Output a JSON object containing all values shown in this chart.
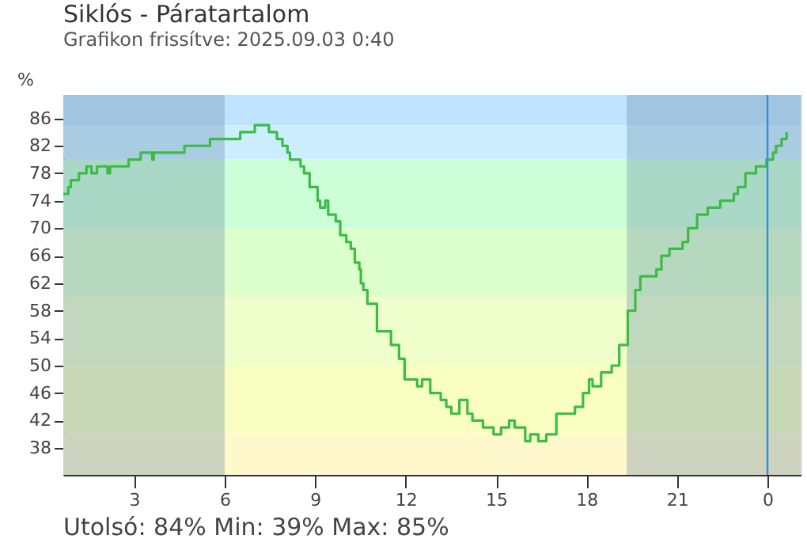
{
  "chart_data": {
    "type": "step",
    "title": "Siklós - Páratartalom",
    "subtitle": "Grafikon frissítve: 2025.09.03 0:40",
    "ylabel": "%",
    "x": [
      "2025-09-02T00:39",
      "2025-09-02T00:49",
      "2025-09-02T00:54",
      "2025-09-02T01:10",
      "2025-09-02T01:25",
      "2025-09-02T01:35",
      "2025-09-02T01:46",
      "2025-09-02T02:07",
      "2025-09-02T02:12",
      "2025-09-02T02:49",
      "2025-09-02T03:13",
      "2025-09-02T03:36",
      "2025-09-02T03:39",
      "2025-09-02T04:40",
      "2025-09-02T05:31",
      "2025-09-02T06:31",
      "2025-09-02T07:00",
      "2025-09-02T07:28",
      "2025-09-02T07:44",
      "2025-09-02T07:55",
      "2025-09-02T08:05",
      "2025-09-02T08:10",
      "2025-09-02T08:31",
      "2025-09-02T08:38",
      "2025-09-02T08:49",
      "2025-09-02T09:05",
      "2025-09-02T09:10",
      "2025-09-02T09:20",
      "2025-09-02T09:26",
      "2025-09-02T09:41",
      "2025-09-02T09:50",
      "2025-09-02T10:02",
      "2025-09-02T10:11",
      "2025-09-02T10:19",
      "2025-09-02T10:28",
      "2025-09-02T10:31",
      "2025-09-02T10:36",
      "2025-09-02T10:44",
      "2025-09-02T11:03",
      "2025-09-02T11:20",
      "2025-09-02T11:31",
      "2025-09-02T11:47",
      "2025-09-02T11:58",
      "2025-09-02T12:13",
      "2025-09-02T12:23",
      "2025-09-02T12:33",
      "2025-09-02T12:49",
      "2025-09-02T13:10",
      "2025-09-02T13:21",
      "2025-09-02T13:31",
      "2025-09-02T13:47",
      "2025-09-02T14:03",
      "2025-09-02T14:13",
      "2025-09-02T14:34",
      "2025-09-02T14:55",
      "2025-09-02T15:10",
      "2025-09-02T15:26",
      "2025-09-02T15:37",
      "2025-09-02T15:45",
      "2025-09-02T15:58",
      "2025-09-02T16:08",
      "2025-09-02T16:24",
      "2025-09-02T16:40",
      "2025-09-02T17:00",
      "2025-09-02T17:21",
      "2025-09-02T17:37",
      "2025-09-02T17:53",
      "2025-09-02T18:05",
      "2025-09-02T18:12",
      "2025-09-02T18:29",
      "2025-09-02T18:50",
      "2025-09-02T19:05",
      "2025-09-02T19:22",
      "2025-09-02T19:37",
      "2025-09-02T19:47",
      "2025-09-02T20:19",
      "2025-09-02T20:29",
      "2025-09-02T20:45",
      "2025-09-02T21:11",
      "2025-09-02T21:22",
      "2025-09-02T21:40",
      "2025-09-02T22:01",
      "2025-09-02T22:26",
      "2025-09-02T22:53",
      "2025-09-02T23:01",
      "2025-09-02T23:16",
      "2025-09-02T23:37",
      "2025-09-02T23:58",
      "2025-09-03T00:11",
      "2025-09-03T00:17",
      "2025-09-03T00:28",
      "2025-09-03T00:38"
    ],
    "series": [
      {
        "color": "#3cbc44",
        "values": [
          75,
          76,
          77,
          78,
          79,
          78,
          79,
          78,
          79,
          80,
          81,
          80,
          81,
          82,
          83,
          84,
          85,
          84,
          83,
          82,
          81,
          80,
          79,
          78,
          76,
          74,
          73,
          74,
          72,
          71,
          69,
          68,
          67,
          65,
          64,
          62,
          61,
          59,
          55,
          55,
          53,
          51,
          48,
          48,
          47,
          48,
          46,
          45,
          44,
          43,
          45,
          43,
          42,
          41,
          40,
          41,
          42,
          41,
          41,
          39,
          40,
          39,
          40,
          43,
          43,
          44,
          46,
          48,
          47,
          49,
          50,
          53,
          58,
          61,
          63,
          64,
          66,
          67,
          68,
          70,
          72,
          73,
          74,
          75,
          76,
          78,
          79,
          80,
          81,
          82,
          83,
          84
        ]
      }
    ],
    "xlim": [
      "2025-09-02T00:39",
      "2025-09-03T01:06"
    ],
    "xticks": [
      {
        "value": "2025-09-02T03:00",
        "label": "3"
      },
      {
        "value": "2025-09-02T06:00",
        "label": "6"
      },
      {
        "value": "2025-09-02T09:00",
        "label": "9"
      },
      {
        "value": "2025-09-02T12:00",
        "label": "12"
      },
      {
        "value": "2025-09-02T15:00",
        "label": "15"
      },
      {
        "value": "2025-09-02T18:00",
        "label": "18"
      },
      {
        "value": "2025-09-02T21:00",
        "label": "21"
      },
      {
        "value": "2025-09-03T00:00",
        "label": "0"
      }
    ],
    "ylim": [
      34.1,
      89.4
    ],
    "yticks": [
      38,
      42,
      46,
      50,
      54,
      58,
      62,
      66,
      70,
      74,
      78,
      82,
      86
    ],
    "grid": false,
    "marker": "none",
    "line_style": "solid",
    "bands": [
      {
        "axis": "y",
        "from": 34.1,
        "to": 40,
        "color": "#fff8cc"
      },
      {
        "axis": "y",
        "from": 40,
        "to": 50,
        "color": "#f8ffc0"
      },
      {
        "axis": "y",
        "from": 50,
        "to": 60,
        "color": "#eeffcc"
      },
      {
        "axis": "y",
        "from": 60,
        "to": 70,
        "color": "#ddffcc"
      },
      {
        "axis": "y",
        "from": 70,
        "to": 80,
        "color": "#ccffd8"
      },
      {
        "axis": "y",
        "from": 80,
        "to": 85,
        "color": "#cceeff"
      },
      {
        "axis": "y",
        "from": 85,
        "to": 89.4,
        "color": "#bfe4ff"
      },
      {
        "axis": "x",
        "from": "2025-09-02T00:39",
        "to": "2025-09-02T06:00",
        "color": "#5a7fa0"
      },
      {
        "axis": "x",
        "from": "2025-09-02T19:20",
        "to": "2025-09-03T01:06",
        "color": "#5a7fa0"
      }
    ],
    "ref_lines": [
      {
        "axis": "x",
        "value": "2025-09-03T00:00",
        "color": "#3a8ccc"
      }
    ],
    "annotations": [
      "Utolsó: 84%  Min: 39%  Max: 85%"
    ]
  }
}
